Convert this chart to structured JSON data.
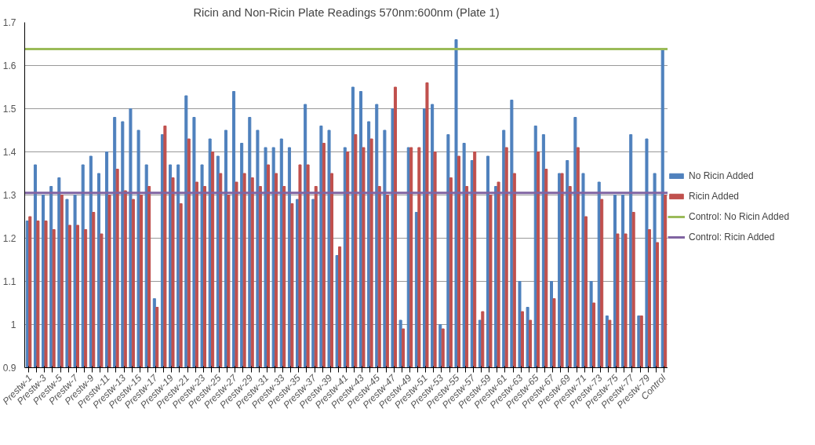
{
  "chart_data": {
    "type": "bar",
    "title": "Ricin and Non-Ricin Plate Readings 570nm:600nm (Plate 1)",
    "categories": [
      "Prestw-1",
      null,
      "Prestw-3",
      null,
      "Prestw-5",
      null,
      "Prestw-7",
      null,
      "Prestw-9",
      null,
      "Prestw-11",
      null,
      "Prestw-13",
      null,
      "Prestw-15",
      null,
      "Prestw-17",
      null,
      "Prestw-19",
      null,
      "Prestw-21",
      null,
      "Prestw-23",
      null,
      "Prestw-25",
      null,
      "Prestw-27",
      null,
      "Prestw-29",
      null,
      "Prestw-31",
      null,
      "Prestw-33",
      null,
      "Prestw-35",
      null,
      "Prestw-37",
      null,
      "Prestw-39",
      null,
      "Prestw-41",
      null,
      "Prestw-43",
      null,
      "Prestw-45",
      null,
      "Prestw-47",
      null,
      "Prestw-49",
      null,
      "Prestw-51",
      null,
      "Prestw-53",
      null,
      "Prestw-55",
      null,
      "Prestw-57",
      null,
      "Prestw-59",
      null,
      "Prestw-61",
      null,
      "Prestw-63",
      null,
      "Prestw-65",
      null,
      "Prestw-67",
      null,
      "Prestw-69",
      null,
      "Prestw-71",
      null,
      "Prestw-73",
      null,
      "Prestw-75",
      null,
      "Prestw-77",
      null,
      "Prestw-79",
      null,
      "Control"
    ],
    "series": [
      {
        "name": "No Ricin Added",
        "color": "#4f81bd",
        "values": [
          1.24,
          1.37,
          1.3,
          1.32,
          1.34,
          1.29,
          1.3,
          1.37,
          1.39,
          1.35,
          1.4,
          1.48,
          1.47,
          1.5,
          1.45,
          1.37,
          1.06,
          1.44,
          1.37,
          1.37,
          1.53,
          1.48,
          1.37,
          1.43,
          1.39,
          1.45,
          1.54,
          1.42,
          1.48,
          1.45,
          1.41,
          1.41,
          1.43,
          1.41,
          1.29,
          1.51,
          1.29,
          1.46,
          1.45,
          1.16,
          1.41,
          1.55,
          1.54,
          1.47,
          1.51,
          1.45,
          1.5,
          1.01,
          1.41,
          1.26,
          1.5,
          1.51,
          1.0,
          1.44,
          1.66,
          1.42,
          1.38,
          1.01,
          1.39,
          1.32,
          1.45,
          1.52,
          1.1,
          1.04,
          1.46,
          1.44,
          1.1,
          1.35,
          1.38,
          1.48,
          1.35,
          1.1,
          1.33,
          1.02,
          1.3,
          1.3,
          1.44,
          1.02,
          1.43,
          1.35,
          1.64
        ]
      },
      {
        "name": "Ricin Added",
        "color": "#c0504d",
        "values": [
          1.25,
          1.24,
          1.24,
          1.22,
          1.3,
          1.23,
          1.23,
          1.22,
          1.26,
          1.21,
          1.3,
          1.36,
          1.31,
          1.29,
          1.3,
          1.32,
          1.04,
          1.46,
          1.34,
          1.28,
          1.43,
          1.33,
          1.32,
          1.4,
          1.35,
          1.3,
          1.33,
          1.35,
          1.34,
          1.32,
          1.37,
          1.35,
          1.32,
          1.28,
          1.37,
          1.37,
          1.32,
          1.42,
          1.35,
          1.18,
          1.4,
          1.44,
          1.41,
          1.43,
          1.32,
          1.3,
          1.55,
          0.99,
          1.41,
          1.41,
          1.56,
          1.4,
          0.99,
          1.34,
          1.39,
          1.32,
          1.4,
          1.03,
          1.3,
          1.33,
          1.41,
          1.35,
          1.03,
          1.01,
          1.4,
          1.36,
          1.06,
          1.35,
          1.32,
          1.41,
          1.25,
          1.05,
          1.29,
          1.01,
          1.21,
          1.21,
          1.26,
          1.02,
          1.22,
          1.19,
          1.3
        ]
      }
    ],
    "ref_lines": [
      {
        "axis": "y",
        "value": 1.638,
        "label": "Control: No Ricin Added",
        "color": "#9bbb59"
      },
      {
        "axis": "y",
        "value": 1.305,
        "label": "Control: Ricin Added",
        "color": "#8064a2"
      }
    ],
    "ylim": [
      0.9,
      1.7
    ],
    "yticks": [
      0.9,
      1,
      1.1,
      1.2,
      1.3,
      1.4,
      1.5,
      1.6,
      1.7
    ],
    "grid": "y",
    "legend": "right"
  }
}
